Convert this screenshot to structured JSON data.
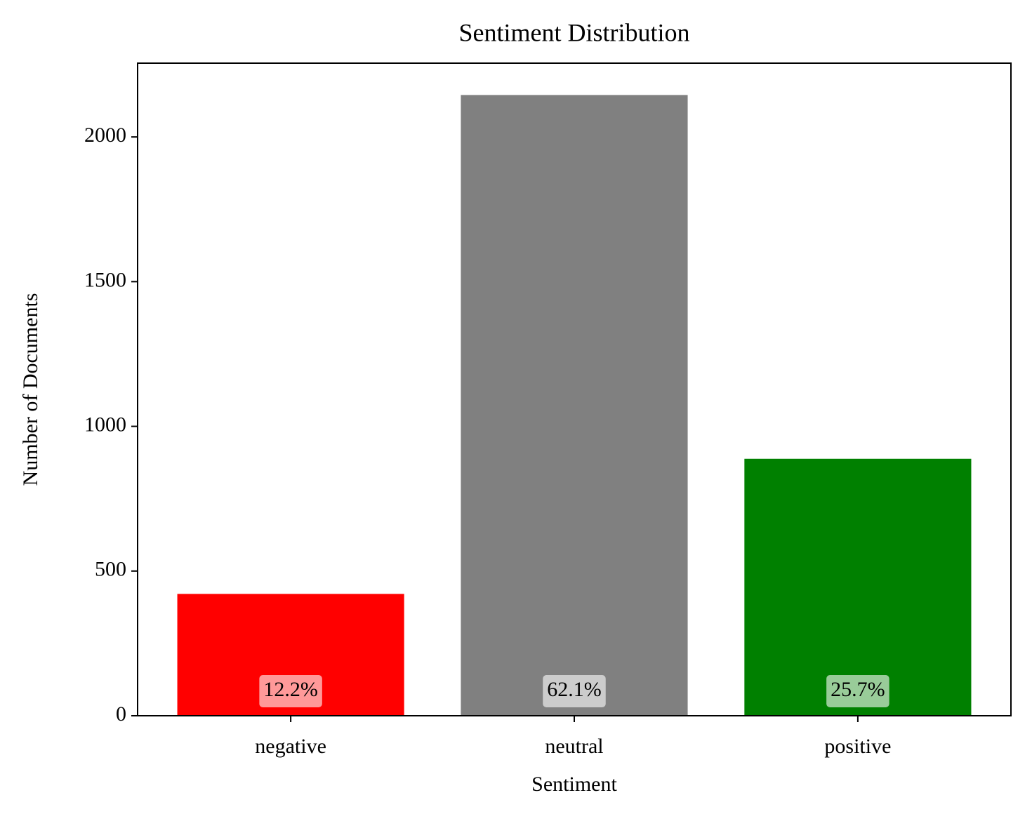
{
  "chart_data": {
    "type": "bar",
    "title": "Sentiment Distribution",
    "x_label": "Sentiment",
    "y_label": "Number of Documents",
    "categories": [
      "negative",
      "neutral",
      "positive"
    ],
    "values": [
      421,
      2145,
      888
    ],
    "colors": [
      "#ff0000",
      "#808080",
      "#008000"
    ],
    "percent_labels": [
      "12.2%",
      "62.1%",
      "25.7%"
    ],
    "ylim": [
      0,
      2255
    ],
    "yticks": [
      0,
      500,
      1000,
      1500,
      2000
    ],
    "grid": false
  }
}
